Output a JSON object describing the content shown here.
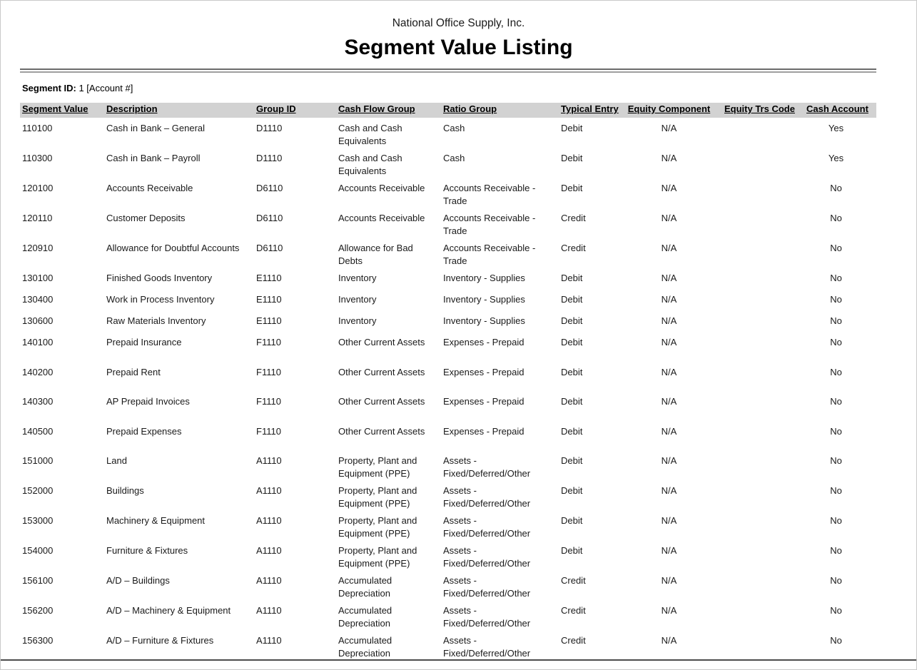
{
  "report": {
    "company": "National Office Supply, Inc.",
    "title": "Segment Value Listing",
    "segment_label": "Segment ID:",
    "segment_value": " 1 [Account #]"
  },
  "colors": {
    "header_band": "#d2d2d2",
    "rule_dark": "#6b6b6b",
    "rule_light": "#9f9f9f",
    "bottom_rule": "#4c4c4c",
    "text": "#1a1a1a"
  },
  "table": {
    "columns": [
      {
        "key": "segment-value",
        "label": "Segment Value"
      },
      {
        "key": "description",
        "label": "Description"
      },
      {
        "key": "group-id",
        "label": "Group ID"
      },
      {
        "key": "cash-flow-group",
        "label": "Cash Flow Group"
      },
      {
        "key": "ratio-group",
        "label": "Ratio Group"
      },
      {
        "key": "typical-entry",
        "label": "Typical Entry"
      },
      {
        "key": "equity-component",
        "label": "Equity Component"
      },
      {
        "key": "equity-trs-code",
        "label": "Equity Trs Code"
      },
      {
        "key": "cash-account",
        "label": "Cash Account"
      }
    ],
    "rows": [
      {
        "cells": [
          "110100",
          "Cash in Bank – General",
          "D1110",
          "Cash and Cash Equivalents",
          "Cash",
          "Debit",
          "N/A",
          "",
          "Yes"
        ]
      },
      {
        "cells": [
          "110300",
          "Cash in Bank – Payroll",
          "D1110",
          "Cash and Cash Equivalents",
          "Cash",
          "Debit",
          "N/A",
          "",
          "Yes"
        ]
      },
      {
        "cells": [
          "120100",
          "Accounts Receivable",
          "D6110",
          "Accounts Receivable",
          "Accounts Receivable - Trade",
          "Debit",
          "N/A",
          "",
          "No"
        ]
      },
      {
        "cells": [
          "120110",
          "Customer Deposits",
          "D6110",
          "Accounts Receivable",
          "Accounts Receivable - Trade",
          "Credit",
          "N/A",
          "",
          "No"
        ]
      },
      {
        "cells": [
          "120910",
          "Allowance for Doubtful Accounts",
          "D6110",
          "Allowance for Bad Debts",
          "Accounts Receivable - Trade",
          "Credit",
          "N/A",
          "",
          "No"
        ]
      },
      {
        "compact": true,
        "cells": [
          "130100",
          "Finished Goods Inventory",
          "E1110",
          "Inventory",
          "Inventory - Supplies",
          "Debit",
          "N/A",
          "",
          "No"
        ]
      },
      {
        "compact": true,
        "cells": [
          "130400",
          "Work in Process Inventory",
          "E1110",
          "Inventory",
          "Inventory - Supplies",
          "Debit",
          "N/A",
          "",
          "No"
        ]
      },
      {
        "compact": true,
        "cells": [
          "130600",
          "Raw Materials Inventory",
          "E1110",
          "Inventory",
          "Inventory - Supplies",
          "Debit",
          "N/A",
          "",
          "No"
        ]
      },
      {
        "cells": [
          "140100",
          "Prepaid Insurance",
          "F1110",
          "Other Current Assets",
          "Expenses - Prepaid",
          "Debit",
          "N/A",
          "",
          "No"
        ]
      },
      {
        "cells": [
          "140200",
          "Prepaid Rent",
          "F1110",
          "Other Current Assets",
          "Expenses - Prepaid",
          "Debit",
          "N/A",
          "",
          "No"
        ]
      },
      {
        "cells": [
          "140300",
          "AP Prepaid Invoices",
          "F1110",
          "Other Current Assets",
          "Expenses - Prepaid",
          "Debit",
          "N/A",
          "",
          "No"
        ]
      },
      {
        "cells": [
          "140500",
          "Prepaid Expenses",
          "F1110",
          "Other Current Assets",
          "Expenses - Prepaid",
          "Debit",
          "N/A",
          "",
          "No"
        ]
      },
      {
        "cells": [
          "151000",
          "Land",
          "A1110",
          "Property, Plant and Equipment (PPE)",
          "Assets - Fixed/Deferred/Other",
          "Debit",
          "N/A",
          "",
          "No"
        ]
      },
      {
        "cells": [
          "152000",
          "Buildings",
          "A1110",
          "Property, Plant and Equipment (PPE)",
          "Assets - Fixed/Deferred/Other",
          "Debit",
          "N/A",
          "",
          "No"
        ]
      },
      {
        "cells": [
          "153000",
          "Machinery & Equipment",
          "A1110",
          "Property, Plant and Equipment (PPE)",
          "Assets - Fixed/Deferred/Other",
          "Debit",
          "N/A",
          "",
          "No"
        ]
      },
      {
        "cells": [
          "154000",
          "Furniture & Fixtures",
          "A1110",
          "Property, Plant and Equipment (PPE)",
          "Assets - Fixed/Deferred/Other",
          "Debit",
          "N/A",
          "",
          "No"
        ]
      },
      {
        "cells": [
          "156100",
          "A/D – Buildings",
          "A1110",
          "Accumulated Depreciation",
          "Assets - Fixed/Deferred/Other",
          "Credit",
          "N/A",
          "",
          "No"
        ]
      },
      {
        "cells": [
          "156200",
          "A/D – Machinery & Equipment",
          "A1110",
          "Accumulated Depreciation",
          "Assets - Fixed/Deferred/Other",
          "Credit",
          "N/A",
          "",
          "No"
        ]
      },
      {
        "cells": [
          "156300",
          "A/D – Furniture & Fixtures",
          "A1110",
          "Accumulated Depreciation",
          "Assets - Fixed/Deferred/Other",
          "Credit",
          "N/A",
          "",
          "No"
        ]
      }
    ]
  }
}
